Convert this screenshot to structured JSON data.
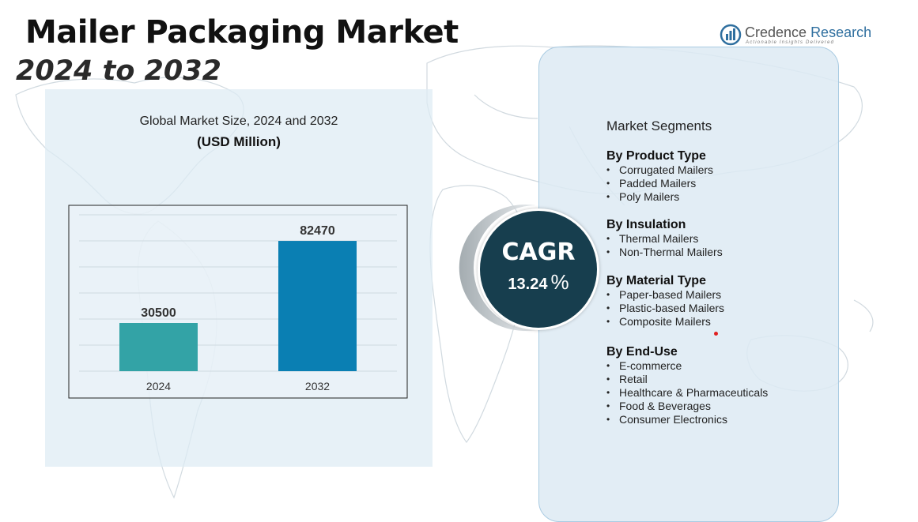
{
  "header": {
    "title": "Mailer Packaging Market",
    "subtitle": "2024 to 2032"
  },
  "logo": {
    "brand_part1": "Credence",
    "brand_part2": "Research",
    "tagline": "Actionable Insights Delivered"
  },
  "chart_data": {
    "type": "bar",
    "title": "Global Market Size, 2024 and 2032",
    "unit": "(USD Million)",
    "categories": [
      "2024",
      "2032"
    ],
    "values": [
      30500,
      82470
    ],
    "data_labels": [
      "30500",
      "82470"
    ],
    "ylim": [
      0,
      100000
    ],
    "grid": true,
    "colors": [
      "#33a3a6",
      "#0a7fb3"
    ]
  },
  "cagr": {
    "label": "CAGR",
    "value": "13.24",
    "percent_sign": "%"
  },
  "segments": {
    "title": "Market Segments",
    "groups": [
      {
        "heading": "By Product Type",
        "items": [
          "Corrugated Mailers",
          "Padded Mailers",
          "Poly Mailers"
        ]
      },
      {
        "heading": "By Insulation",
        "items": [
          "Thermal Mailers",
          "Non-Thermal Mailers"
        ]
      },
      {
        "heading": "By Material Type",
        "items": [
          "Paper-based Mailers",
          "Plastic-based Mailers",
          "Composite Mailers"
        ]
      },
      {
        "heading": "By End-Use",
        "items": [
          "E-commerce",
          "Retail",
          "Healthcare & Pharmaceuticals",
          "Food & Beverages",
          "Consumer Electronics"
        ]
      }
    ]
  },
  "colors": {
    "panel": "#deebf4",
    "cagr_circle": "#173e4e",
    "bar_2024": "#33a3a6",
    "bar_2032": "#0a7fb3"
  }
}
